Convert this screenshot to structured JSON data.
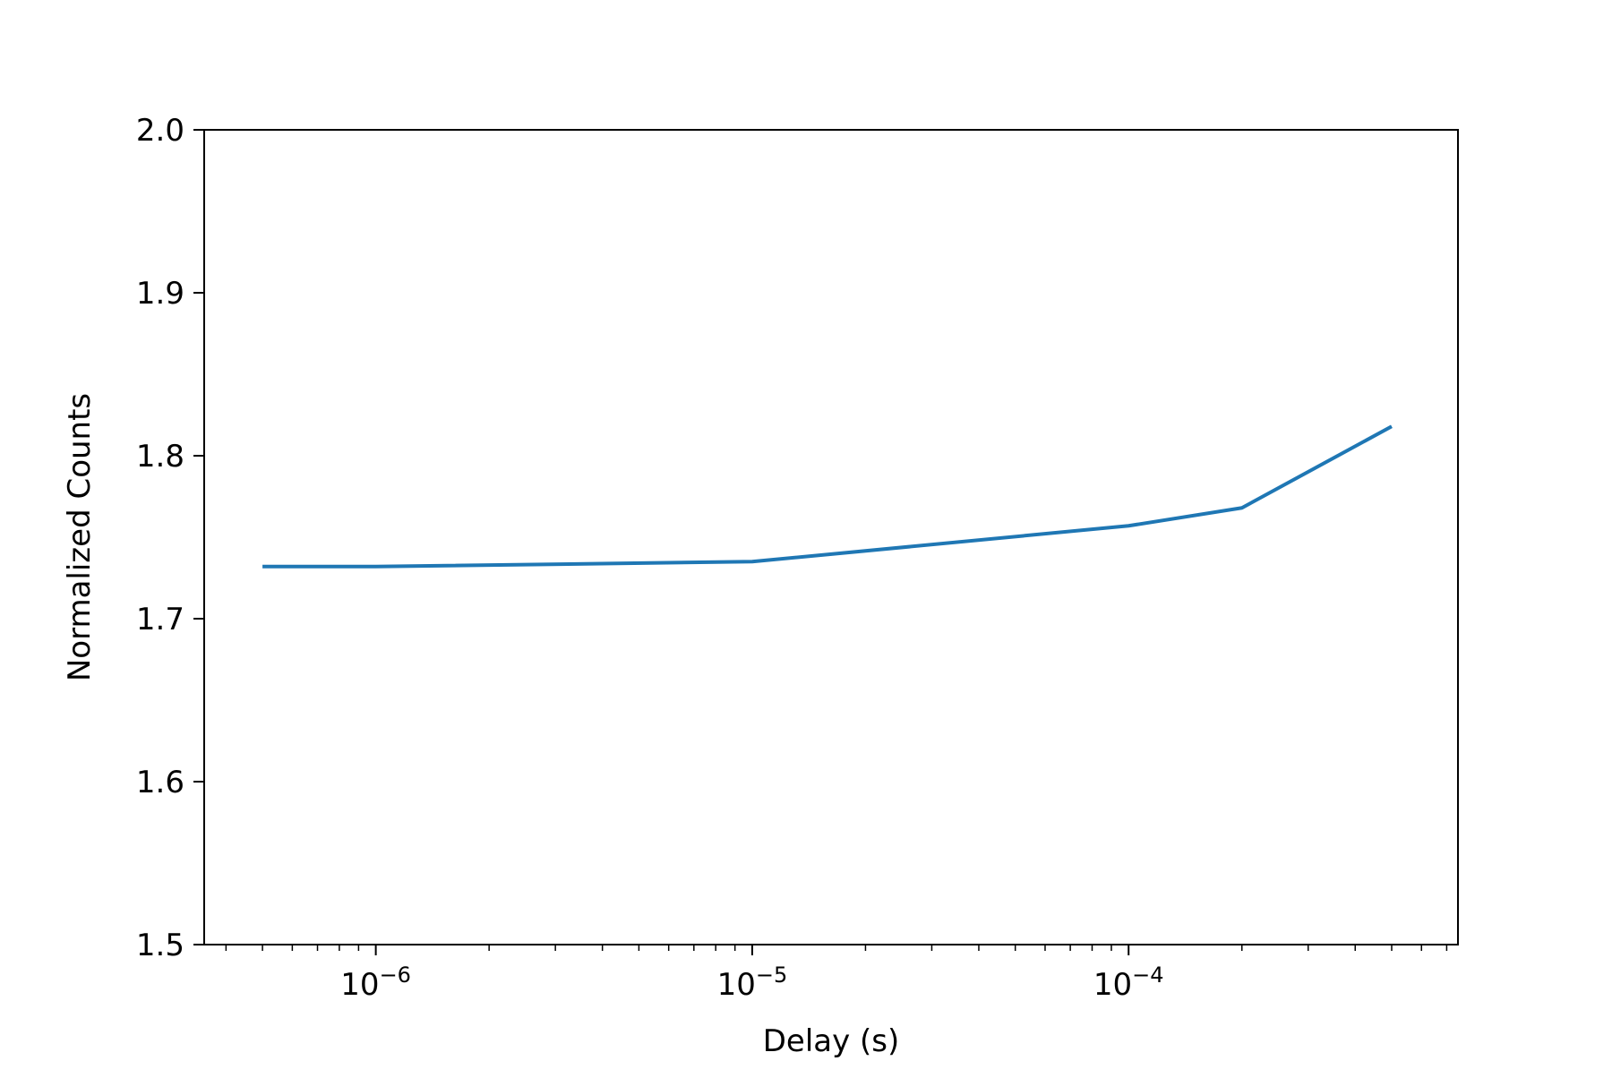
{
  "chart_data": {
    "type": "line",
    "title": "",
    "xlabel": "Delay (s)",
    "ylabel": "Normalized Counts",
    "xscale": "log",
    "xlim": [
      3.5e-07,
      0.00075
    ],
    "ylim": [
      1.5,
      2.0
    ],
    "grid": false,
    "yticks": [
      1.5,
      1.6,
      1.7,
      1.8,
      1.9,
      2.0
    ],
    "ytick_labels": [
      "1.5",
      "1.6",
      "1.7",
      "1.8",
      "1.9",
      "2.0"
    ],
    "xticks": [
      {
        "value": 1e-06,
        "base": "10",
        "exp": "−6"
      },
      {
        "value": 1e-05,
        "base": "10",
        "exp": "−5"
      },
      {
        "value": 0.0001,
        "base": "10",
        "exp": "−4"
      }
    ],
    "series": [
      {
        "color": "#1f77b4",
        "x": [
          5e-07,
          1e-06,
          1e-05,
          0.0001,
          0.0002,
          0.0005
        ],
        "y": [
          1.732,
          1.732,
          1.735,
          1.757,
          1.768,
          1.818
        ]
      }
    ]
  }
}
